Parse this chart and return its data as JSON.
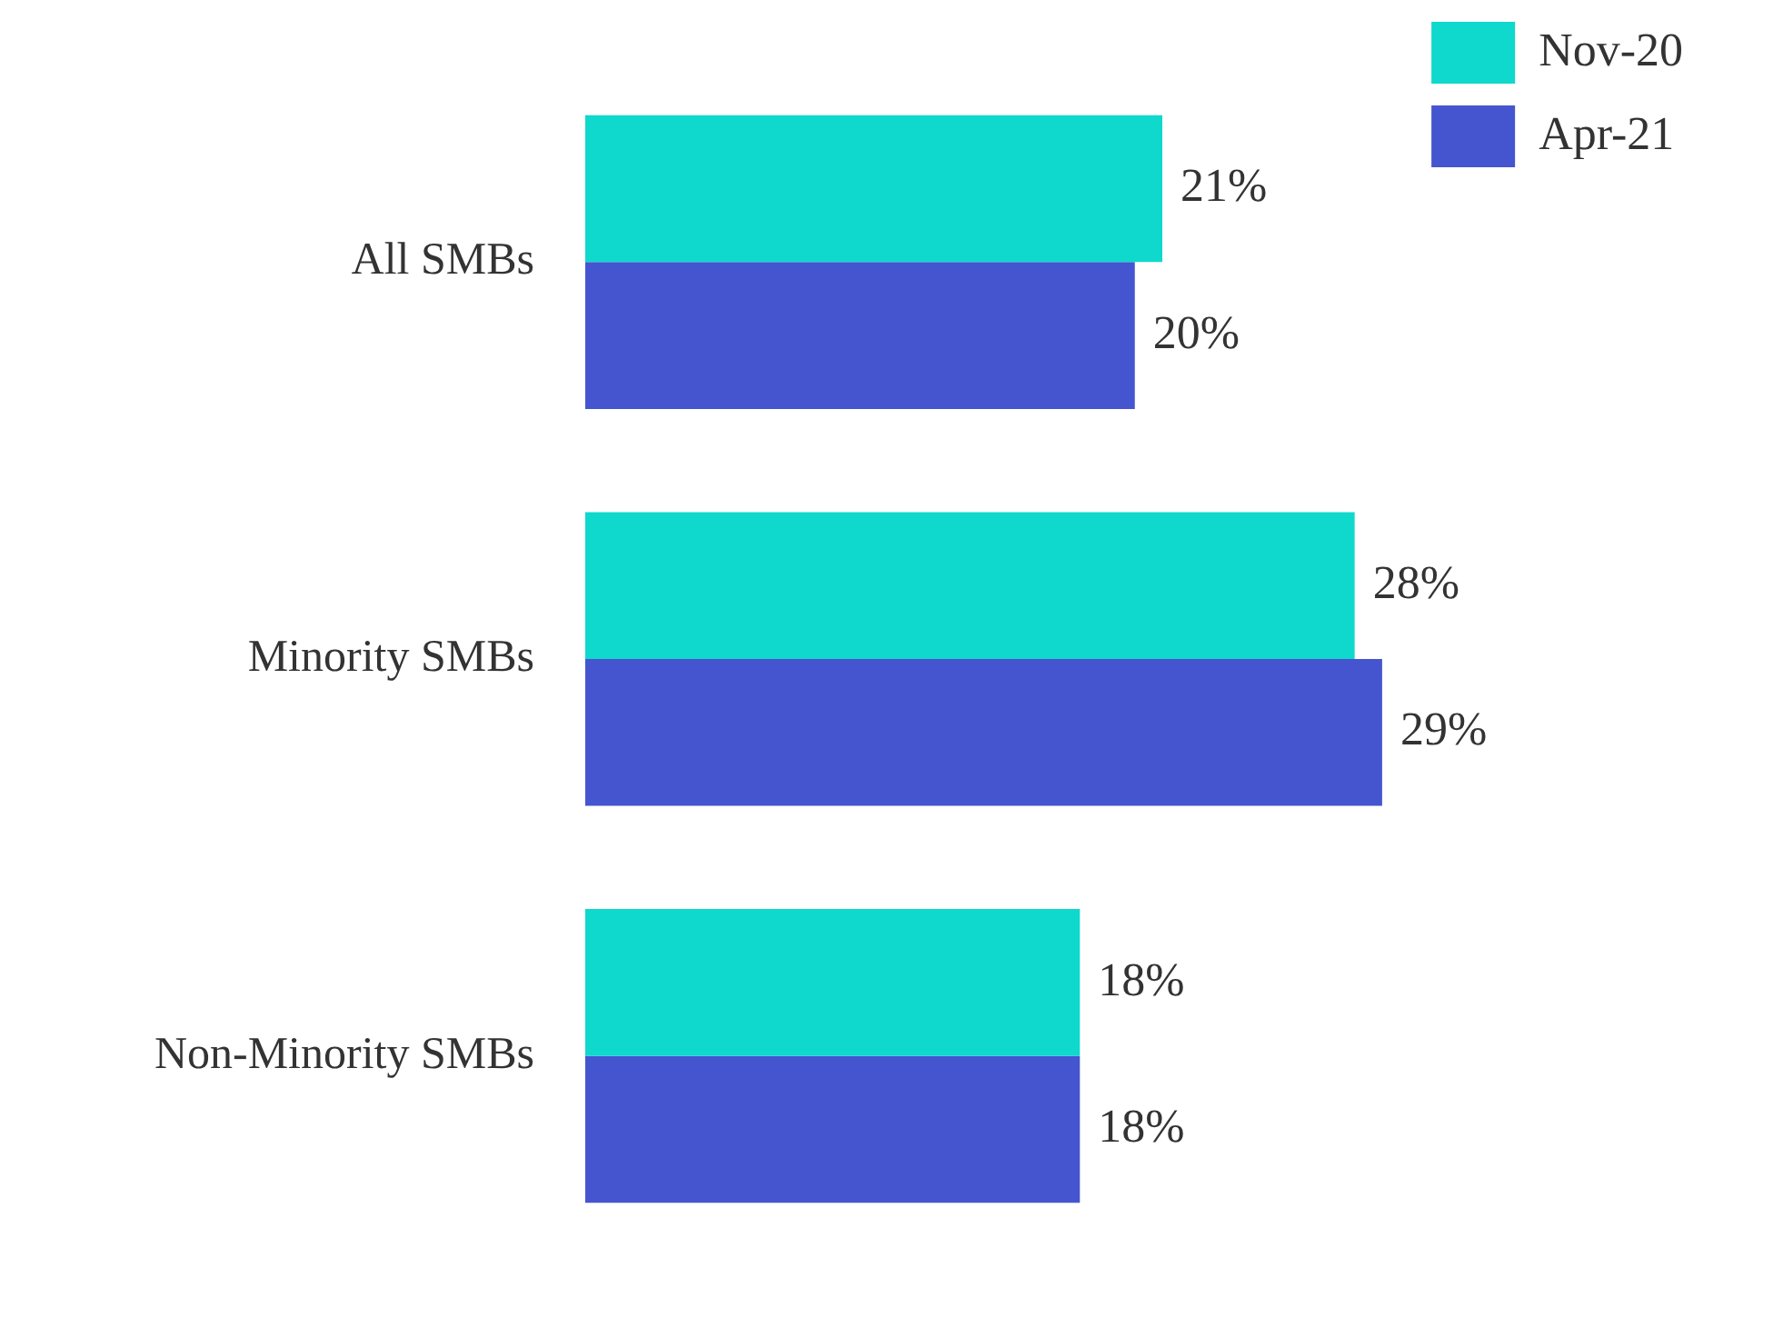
{
  "chart_data": {
    "type": "bar",
    "orientation": "horizontal",
    "categories": [
      "All SMBs",
      "Minority SMBs",
      "Non-Minority SMBs"
    ],
    "series": [
      {
        "name": "Nov-20",
        "color": "#0fd8cc",
        "values": [
          21,
          28,
          18
        ],
        "value_labels": [
          "21%",
          "28%",
          "18%"
        ]
      },
      {
        "name": "Apr-21",
        "color": "#4555d0",
        "values": [
          20,
          29,
          18
        ],
        "value_labels": [
          "20%",
          "29%",
          "18%"
        ]
      }
    ],
    "legend": "top right"
  }
}
